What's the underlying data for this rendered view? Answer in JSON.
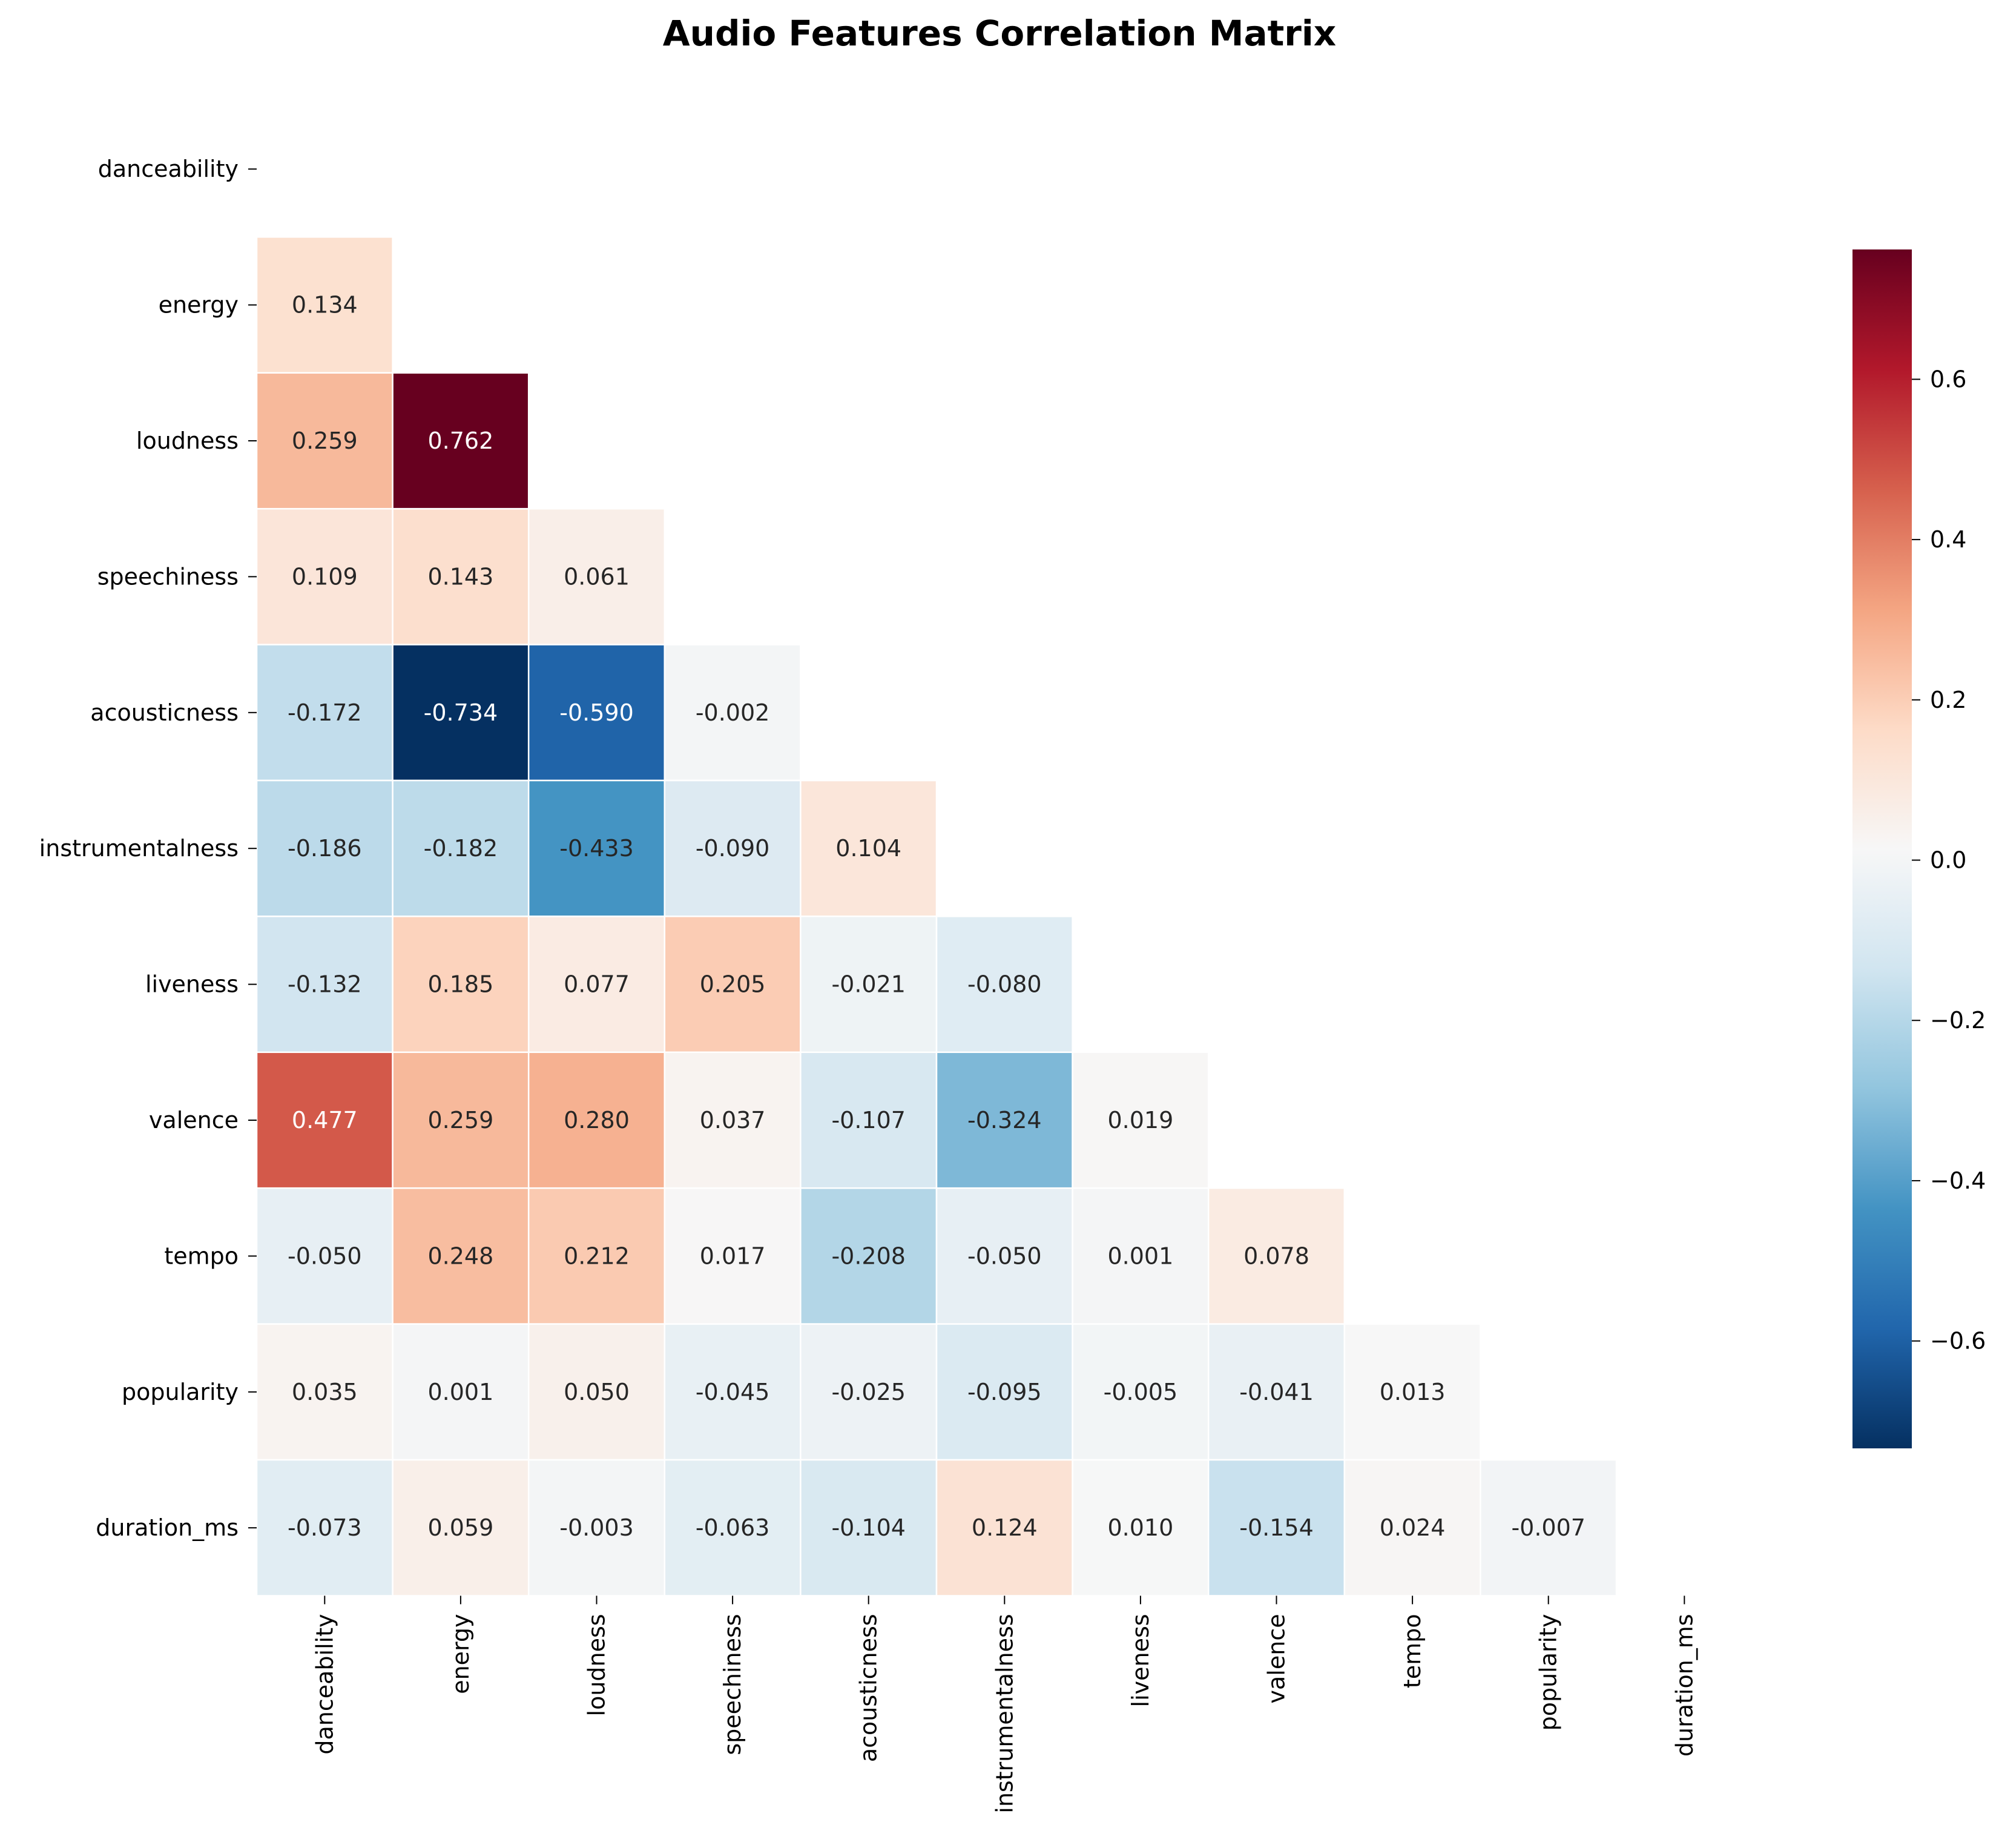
{
  "chart_data": {
    "type": "heatmap",
    "title": "Audio Features Correlation Matrix",
    "xlabel": "",
    "ylabel": "",
    "labels": [
      "danceability",
      "energy",
      "loudness",
      "speechiness",
      "acousticness",
      "instrumentalness",
      "liveness",
      "valence",
      "tempo",
      "popularity",
      "duration_ms"
    ],
    "mask": "upper-triangle-including-diagonal",
    "matrix": [
      [
        null,
        null,
        null,
        null,
        null,
        null,
        null,
        null,
        null,
        null,
        null
      ],
      [
        0.134,
        null,
        null,
        null,
        null,
        null,
        null,
        null,
        null,
        null,
        null
      ],
      [
        0.259,
        0.762,
        null,
        null,
        null,
        null,
        null,
        null,
        null,
        null,
        null
      ],
      [
        0.109,
        0.143,
        0.061,
        null,
        null,
        null,
        null,
        null,
        null,
        null,
        null
      ],
      [
        -0.172,
        -0.734,
        -0.59,
        -0.002,
        null,
        null,
        null,
        null,
        null,
        null,
        null
      ],
      [
        -0.186,
        -0.182,
        -0.433,
        -0.09,
        0.104,
        null,
        null,
        null,
        null,
        null,
        null
      ],
      [
        -0.132,
        0.185,
        0.077,
        0.205,
        -0.021,
        -0.08,
        null,
        null,
        null,
        null,
        null
      ],
      [
        0.477,
        0.259,
        0.28,
        0.037,
        -0.107,
        -0.324,
        0.019,
        null,
        null,
        null,
        null
      ],
      [
        -0.05,
        0.248,
        0.212,
        0.017,
        -0.208,
        -0.05,
        0.001,
        0.078,
        null,
        null,
        null
      ],
      [
        0.035,
        0.001,
        0.05,
        -0.045,
        -0.025,
        -0.095,
        -0.005,
        -0.041,
        0.013,
        null,
        null
      ],
      [
        -0.073,
        0.059,
        -0.003,
        -0.063,
        -0.104,
        0.124,
        0.01,
        -0.154,
        0.024,
        -0.007,
        null
      ]
    ],
    "annotation_format": "0.000",
    "colormap": "RdBu_r",
    "vmin": -0.734,
    "vmax": 0.762,
    "colorbar": {
      "ticks": [
        -0.6,
        -0.4,
        -0.2,
        0.0,
        0.2,
        0.4,
        0.6
      ],
      "tick_labels": [
        "−0.6",
        "−0.4",
        "−0.2",
        "0.0",
        "0.2",
        "0.4",
        "0.6"
      ]
    },
    "grid": false,
    "legend": "colorbar-right"
  }
}
